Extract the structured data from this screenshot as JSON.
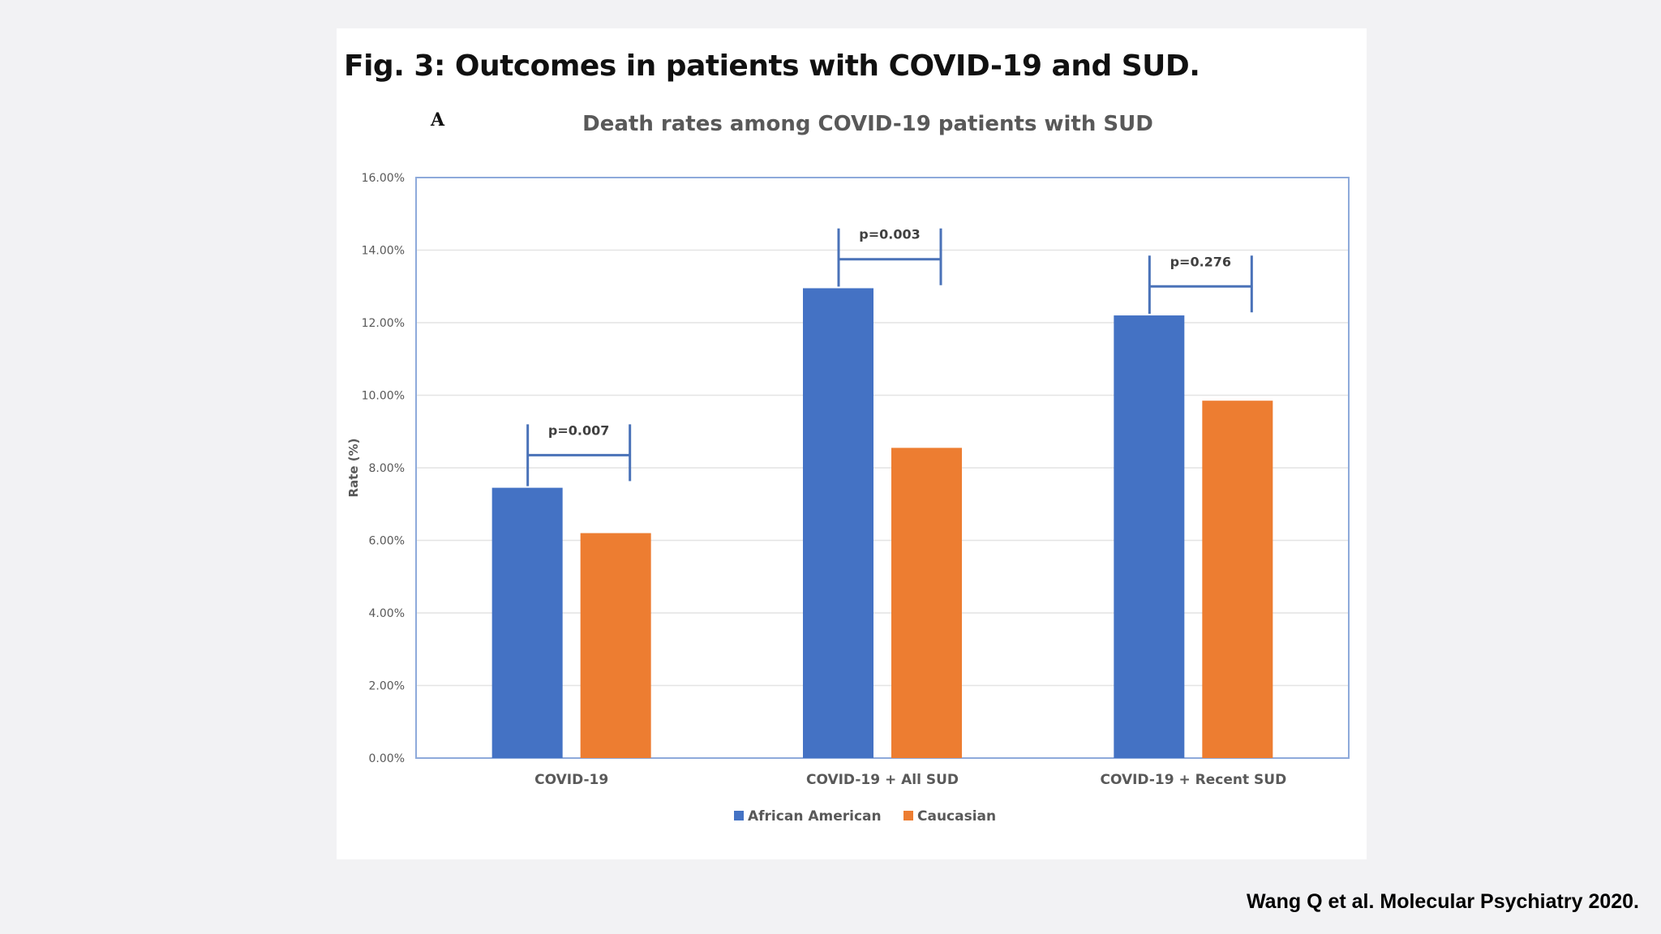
{
  "figure": {
    "title": "Fig. 3: Outcomes in patients with COVID-19 and SUD.",
    "panel_label": "A"
  },
  "citation": "Wang Q et al. Molecular Psychiatry 2020.",
  "colors": {
    "african_american": "#4472c4",
    "caucasian": "#ed7d31",
    "bracket": "#4a72b8",
    "axis_text": "#595959",
    "gridline": "#e4e4e4",
    "plot_border": "#8eaadb"
  },
  "chart_data": {
    "type": "bar",
    "title": "Death rates among COVID-19 patients with SUD",
    "xlabel": "",
    "ylabel": "Rate (%)",
    "ylim": [
      0,
      16
    ],
    "yticks": [
      0,
      2,
      4,
      6,
      8,
      10,
      12,
      14,
      16
    ],
    "ytick_labels": [
      "0.00%",
      "2.00%",
      "4.00%",
      "6.00%",
      "8.00%",
      "10.00%",
      "12.00%",
      "14.00%",
      "16.00%"
    ],
    "grid": true,
    "legend_position": "bottom-center",
    "categories": [
      "COVID-19",
      "COVID-19 + All SUD",
      "COVID-19 + Recent SUD"
    ],
    "series": [
      {
        "name": "African American",
        "color_key": "african_american",
        "values": [
          7.45,
          12.95,
          12.2
        ]
      },
      {
        "name": "Caucasian",
        "color_key": "caucasian",
        "values": [
          6.2,
          8.55,
          9.85
        ]
      }
    ],
    "annotations": [
      {
        "category_index": 0,
        "label": "p=0.007",
        "bracket_value": 8.35
      },
      {
        "category_index": 1,
        "label": "p=0.003",
        "bracket_value": 13.75
      },
      {
        "category_index": 2,
        "label": "p=0.276",
        "bracket_value": 13.0
      }
    ]
  }
}
